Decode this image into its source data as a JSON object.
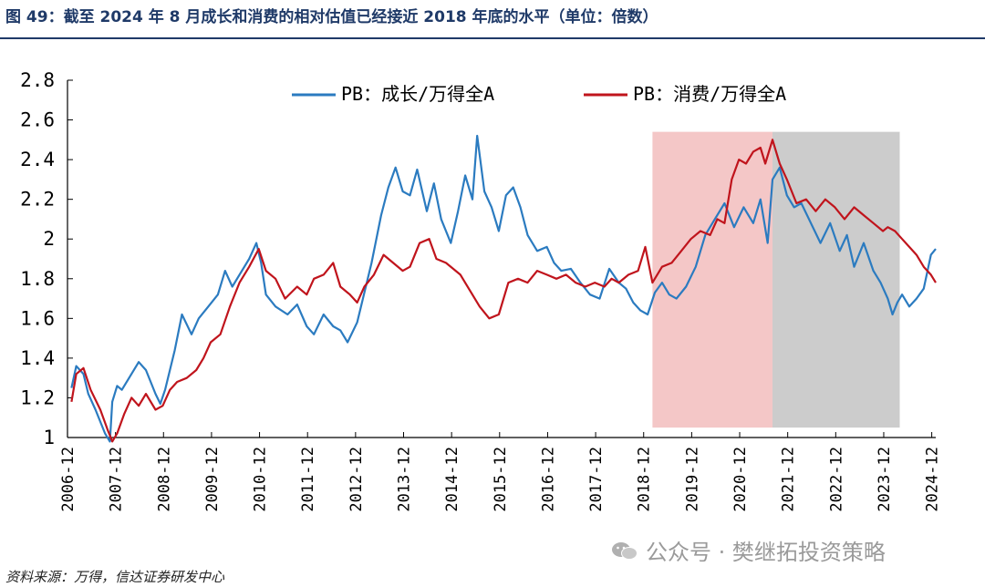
{
  "title": "图 49：截至 2024 年 8 月成长和消费的相对估值已经接近 2018 年底的水平（单位：倍数）",
  "source": "资料来源：万得，信达证券研发中心",
  "watermark": "公众号 · 樊继拓投资策略",
  "chart_data": {
    "type": "line",
    "title": "截至 2024 年 8 月成长和消费的相对估值已经接近 2018 年底的水平",
    "unit": "倍数",
    "ylim": [
      1,
      2.8
    ],
    "yticks": [
      "2.8",
      "2.6",
      "2.4",
      "2.2",
      "2",
      "1.8",
      "1.6",
      "1.4",
      "1.2",
      "1"
    ],
    "xlim": [
      2006.917,
      2025.0
    ],
    "categories": [
      "2006-12",
      "2007-12",
      "2008-12",
      "2009-12",
      "2010-12",
      "2011-12",
      "2012-12",
      "2013-12",
      "2014-12",
      "2015-12",
      "2016-12",
      "2017-12",
      "2018-12",
      "2019-12",
      "2020-12",
      "2021-12",
      "2022-12",
      "2023-12",
      "2024-12"
    ],
    "shaded_regions": [
      {
        "name": "pink-region",
        "from": 2019.1,
        "to": 2021.6,
        "ytop": 2.54,
        "ybottom": 1.05,
        "color": "#f4c7c7"
      },
      {
        "name": "gray-region",
        "from": 2021.6,
        "to": 2024.25,
        "ytop": 2.54,
        "ybottom": 1.05,
        "color": "#cccccc"
      }
    ],
    "legend": [
      {
        "label": "PB：成长/万得全A",
        "color": "#2b7bc0"
      },
      {
        "label": "PB：消费/万得全A",
        "color": "#c0141c"
      }
    ],
    "series": [
      {
        "name": "PB：成长/万得全A",
        "color": "#2b7bc0",
        "x": [
          2007.0,
          2007.1,
          2007.25,
          2007.35,
          2007.5,
          2007.7,
          2007.8,
          2007.85,
          2007.95,
          2008.05,
          2008.2,
          2008.4,
          2008.55,
          2008.75,
          2008.85,
          2008.95,
          2009.15,
          2009.3,
          2009.5,
          2009.65,
          2009.85,
          2010.05,
          2010.2,
          2010.35,
          2010.5,
          2010.7,
          2010.85,
          2010.95,
          2011.05,
          2011.25,
          2011.5,
          2011.7,
          2011.9,
          2012.05,
          2012.25,
          2012.45,
          2012.6,
          2012.75,
          2012.95,
          2013.05,
          2013.25,
          2013.45,
          2013.6,
          2013.75,
          2013.9,
          2014.05,
          2014.2,
          2014.4,
          2014.55,
          2014.7,
          2014.9,
          2015.05,
          2015.2,
          2015.35,
          2015.45,
          2015.6,
          2015.75,
          2015.9,
          2016.05,
          2016.2,
          2016.35,
          2016.5,
          2016.7,
          2016.9,
          2017.05,
          2017.2,
          2017.4,
          2017.6,
          2017.8,
          2018.0,
          2018.2,
          2018.4,
          2018.55,
          2018.7,
          2018.85,
          2019.0,
          2019.15,
          2019.3,
          2019.45,
          2019.6,
          2019.8,
          2020.0,
          2020.2,
          2020.4,
          2020.6,
          2020.8,
          2021.0,
          2021.2,
          2021.35,
          2021.5,
          2021.6,
          2021.75,
          2021.9,
          2022.05,
          2022.2,
          2022.4,
          2022.6,
          2022.8,
          2023.0,
          2023.15,
          2023.3,
          2023.5,
          2023.7,
          2023.85,
          2024.0,
          2024.1,
          2024.2,
          2024.3,
          2024.45,
          2024.6,
          2024.75,
          2024.9,
          2025.0
        ],
        "values": [
          1.25,
          1.36,
          1.32,
          1.22,
          1.14,
          1.02,
          0.98,
          1.18,
          1.26,
          1.24,
          1.3,
          1.38,
          1.34,
          1.22,
          1.17,
          1.24,
          1.44,
          1.62,
          1.52,
          1.6,
          1.66,
          1.72,
          1.84,
          1.76,
          1.82,
          1.9,
          1.98,
          1.88,
          1.72,
          1.66,
          1.62,
          1.67,
          1.56,
          1.52,
          1.62,
          1.56,
          1.54,
          1.48,
          1.58,
          1.68,
          1.88,
          2.12,
          2.26,
          2.36,
          2.24,
          2.22,
          2.35,
          2.14,
          2.28,
          2.1,
          1.98,
          2.14,
          2.32,
          2.2,
          2.52,
          2.24,
          2.16,
          2.04,
          2.22,
          2.26,
          2.16,
          2.02,
          1.94,
          1.96,
          1.88,
          1.84,
          1.85,
          1.78,
          1.72,
          1.7,
          1.85,
          1.78,
          1.75,
          1.68,
          1.64,
          1.62,
          1.73,
          1.78,
          1.72,
          1.7,
          1.76,
          1.86,
          2.02,
          2.1,
          2.18,
          2.06,
          2.16,
          2.08,
          2.2,
          1.98,
          2.3,
          2.36,
          2.22,
          2.16,
          2.18,
          2.08,
          1.98,
          2.08,
          1.94,
          2.02,
          1.86,
          1.98,
          1.84,
          1.78,
          1.7,
          1.62,
          1.68,
          1.72,
          1.66,
          1.7,
          1.75,
          1.92,
          1.95
        ]
      },
      {
        "name": "PB：消费/万得全A",
        "color": "#c0141c",
        "x": [
          2007.0,
          2007.1,
          2007.25,
          2007.4,
          2007.6,
          2007.75,
          2007.85,
          2007.95,
          2008.1,
          2008.25,
          2008.4,
          2008.55,
          2008.75,
          2008.9,
          2009.05,
          2009.2,
          2009.4,
          2009.6,
          2009.75,
          2009.9,
          2010.1,
          2010.3,
          2010.5,
          2010.7,
          2010.9,
          2011.05,
          2011.25,
          2011.45,
          2011.7,
          2011.9,
          2012.05,
          2012.25,
          2012.45,
          2012.6,
          2012.8,
          2012.95,
          2013.1,
          2013.3,
          2013.5,
          2013.7,
          2013.9,
          2014.05,
          2014.25,
          2014.45,
          2014.6,
          2014.8,
          2014.95,
          2015.1,
          2015.3,
          2015.5,
          2015.7,
          2015.9,
          2016.1,
          2016.3,
          2016.5,
          2016.7,
          2016.9,
          2017.1,
          2017.3,
          2017.5,
          2017.7,
          2017.9,
          2018.1,
          2018.25,
          2018.4,
          2018.6,
          2018.8,
          2018.95,
          2019.1,
          2019.3,
          2019.5,
          2019.7,
          2019.9,
          2020.1,
          2020.3,
          2020.45,
          2020.6,
          2020.75,
          2020.9,
          2021.05,
          2021.2,
          2021.35,
          2021.45,
          2021.6,
          2021.75,
          2021.9,
          2022.1,
          2022.3,
          2022.5,
          2022.7,
          2022.9,
          2023.1,
          2023.3,
          2023.5,
          2023.7,
          2023.9,
          2024.0,
          2024.15,
          2024.3,
          2024.45,
          2024.6,
          2024.75,
          2024.9,
          2025.0
        ],
        "values": [
          1.18,
          1.32,
          1.35,
          1.24,
          1.14,
          1.04,
          0.98,
          1.02,
          1.12,
          1.2,
          1.16,
          1.22,
          1.14,
          1.16,
          1.24,
          1.28,
          1.3,
          1.34,
          1.4,
          1.48,
          1.52,
          1.66,
          1.78,
          1.86,
          1.95,
          1.84,
          1.8,
          1.7,
          1.76,
          1.72,
          1.8,
          1.82,
          1.88,
          1.76,
          1.72,
          1.68,
          1.76,
          1.82,
          1.92,
          1.88,
          1.84,
          1.86,
          1.98,
          2.0,
          1.9,
          1.88,
          1.85,
          1.82,
          1.74,
          1.66,
          1.6,
          1.62,
          1.78,
          1.8,
          1.78,
          1.84,
          1.82,
          1.8,
          1.82,
          1.78,
          1.76,
          1.78,
          1.76,
          1.8,
          1.78,
          1.82,
          1.84,
          1.96,
          1.78,
          1.86,
          1.88,
          1.94,
          2.0,
          2.04,
          2.02,
          2.1,
          2.08,
          2.3,
          2.4,
          2.38,
          2.44,
          2.46,
          2.38,
          2.5,
          2.38,
          2.3,
          2.18,
          2.2,
          2.14,
          2.2,
          2.16,
          2.1,
          2.16,
          2.12,
          2.08,
          2.04,
          2.06,
          2.04,
          2.0,
          1.96,
          1.92,
          1.86,
          1.82,
          1.78
        ]
      }
    ]
  }
}
